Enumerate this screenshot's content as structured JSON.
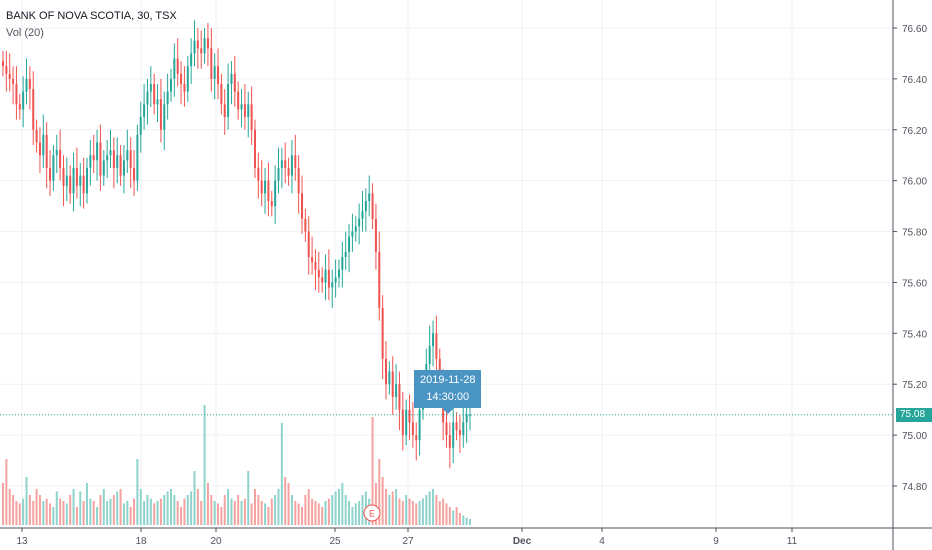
{
  "header": {
    "symbol_line": "BANK OF NOVA SCOTIA, 30, TSX",
    "indicator_line": "Vol (20)"
  },
  "tooltip": {
    "date": "2019-11-28",
    "time": "14:30:00"
  },
  "last_price_label": "75.08",
  "earnings_marker": "E",
  "colors": {
    "up": "#26a69a",
    "down": "#ef5350",
    "vol_up": "#8fd3cc",
    "vol_down": "#f5a3a1",
    "last_price": "#26a69a",
    "grid": "#eef1f5"
  },
  "chart_data": {
    "type": "candlestick",
    "symbol": "BANK OF NOVA SCOTIA",
    "interval": "30",
    "exchange": "TSX",
    "indicator": "Vol (20)",
    "y_axis": {
      "ticks": [
        "76.60",
        "76.40",
        "76.20",
        "76.00",
        "75.80",
        "75.60",
        "75.40",
        "75.20",
        "75.00",
        "74.80"
      ],
      "range": [
        74.66,
        76.66
      ]
    },
    "x_axis": {
      "ticks": [
        "13",
        "18",
        "20",
        "25",
        "27",
        "Dec",
        "4",
        "9",
        "11"
      ],
      "bold_ticks": [
        "Dec"
      ]
    },
    "last_price": 75.08,
    "closes": [
      76.45,
      76.42,
      76.4,
      76.38,
      76.3,
      76.28,
      76.35,
      76.4,
      76.36,
      76.2,
      76.15,
      76.1,
      76.18,
      76.05,
      76.0,
      76.1,
      76.12,
      76.05,
      75.98,
      76.02,
      75.95,
      76.05,
      75.98,
      76.02,
      75.95,
      76.05,
      76.1,
      76.08,
      76.15,
      76.02,
      76.08,
      76.1,
      76.12,
      76.05,
      76.1,
      76.02,
      76.08,
      76.12,
      76.05,
      76.0,
      76.18,
      76.25,
      76.3,
      76.35,
      76.38,
      76.3,
      76.32,
      76.2,
      76.3,
      76.35,
      76.4,
      76.48,
      76.42,
      76.38,
      76.35,
      76.45,
      76.5,
      76.55,
      76.52,
      76.5,
      76.56,
      76.52,
      76.4,
      76.45,
      76.38,
      76.3,
      76.25,
      76.38,
      76.42,
      76.35,
      76.28,
      76.3,
      76.25,
      76.3,
      76.2,
      76.05,
      76.0,
      75.95,
      76.0,
      75.92,
      75.9,
      76.0,
      76.05,
      76.08,
      76.05,
      76.02,
      76.1,
      76.05,
      75.95,
      75.85,
      75.8,
      75.7,
      75.68,
      75.65,
      75.62,
      75.6,
      75.65,
      75.58,
      75.6,
      75.62,
      75.65,
      75.7,
      75.72,
      75.78,
      75.8,
      75.82,
      75.85,
      75.88,
      75.92,
      75.95,
      75.85,
      75.72,
      75.5,
      75.3,
      75.2,
      75.25,
      75.15,
      75.2,
      75.1,
      75.0,
      75.1,
      75.05,
      75.0,
      74.98,
      75.1,
      75.2,
      75.28,
      75.35,
      75.4,
      75.3,
      75.2,
      75.05,
      75.0,
      74.95,
      75.05,
      75.02,
      75.0,
      75.05,
      75.08,
      75.08
    ],
    "volumes": [
      0.35,
      0.55,
      0.3,
      0.25,
      0.2,
      0.18,
      0.22,
      0.4,
      0.25,
      0.2,
      0.3,
      0.25,
      0.2,
      0.22,
      0.18,
      0.15,
      0.28,
      0.22,
      0.2,
      0.18,
      0.25,
      0.3,
      0.15,
      0.28,
      0.2,
      0.35,
      0.22,
      0.2,
      0.15,
      0.25,
      0.3,
      0.2,
      0.22,
      0.25,
      0.28,
      0.3,
      0.18,
      0.2,
      0.15,
      0.22,
      0.55,
      0.3,
      0.2,
      0.25,
      0.22,
      0.18,
      0.2,
      0.22,
      0.25,
      0.28,
      0.3,
      0.25,
      0.2,
      0.15,
      0.22,
      0.25,
      0.28,
      0.45,
      0.3,
      0.2,
      1.0,
      0.35,
      0.25,
      0.2,
      0.18,
      0.15,
      0.25,
      0.3,
      0.22,
      0.2,
      0.25,
      0.2,
      0.22,
      0.45,
      0.18,
      0.3,
      0.25,
      0.2,
      0.18,
      0.15,
      0.22,
      0.25,
      0.3,
      0.85,
      0.4,
      0.35,
      0.25,
      0.2,
      0.18,
      0.15,
      0.25,
      0.3,
      0.22,
      0.2,
      0.18,
      0.15,
      0.2,
      0.22,
      0.25,
      0.28,
      0.3,
      0.35,
      0.25,
      0.2,
      0.15,
      0.18,
      0.2,
      0.25,
      0.28,
      0.22,
      0.9,
      0.35,
      0.55,
      0.4,
      0.3,
      0.25,
      0.28,
      0.3,
      0.22,
      0.2,
      0.25,
      0.22,
      0.2,
      0.18,
      0.2,
      0.22,
      0.25,
      0.28,
      0.3,
      0.25,
      0.2,
      0.22,
      0.18,
      0.15,
      0.12,
      0.15,
      0.1,
      0.08,
      0.06,
      0.05
    ],
    "tooltip": "2019-11-28 14:30:00",
    "event_marker": "E"
  }
}
